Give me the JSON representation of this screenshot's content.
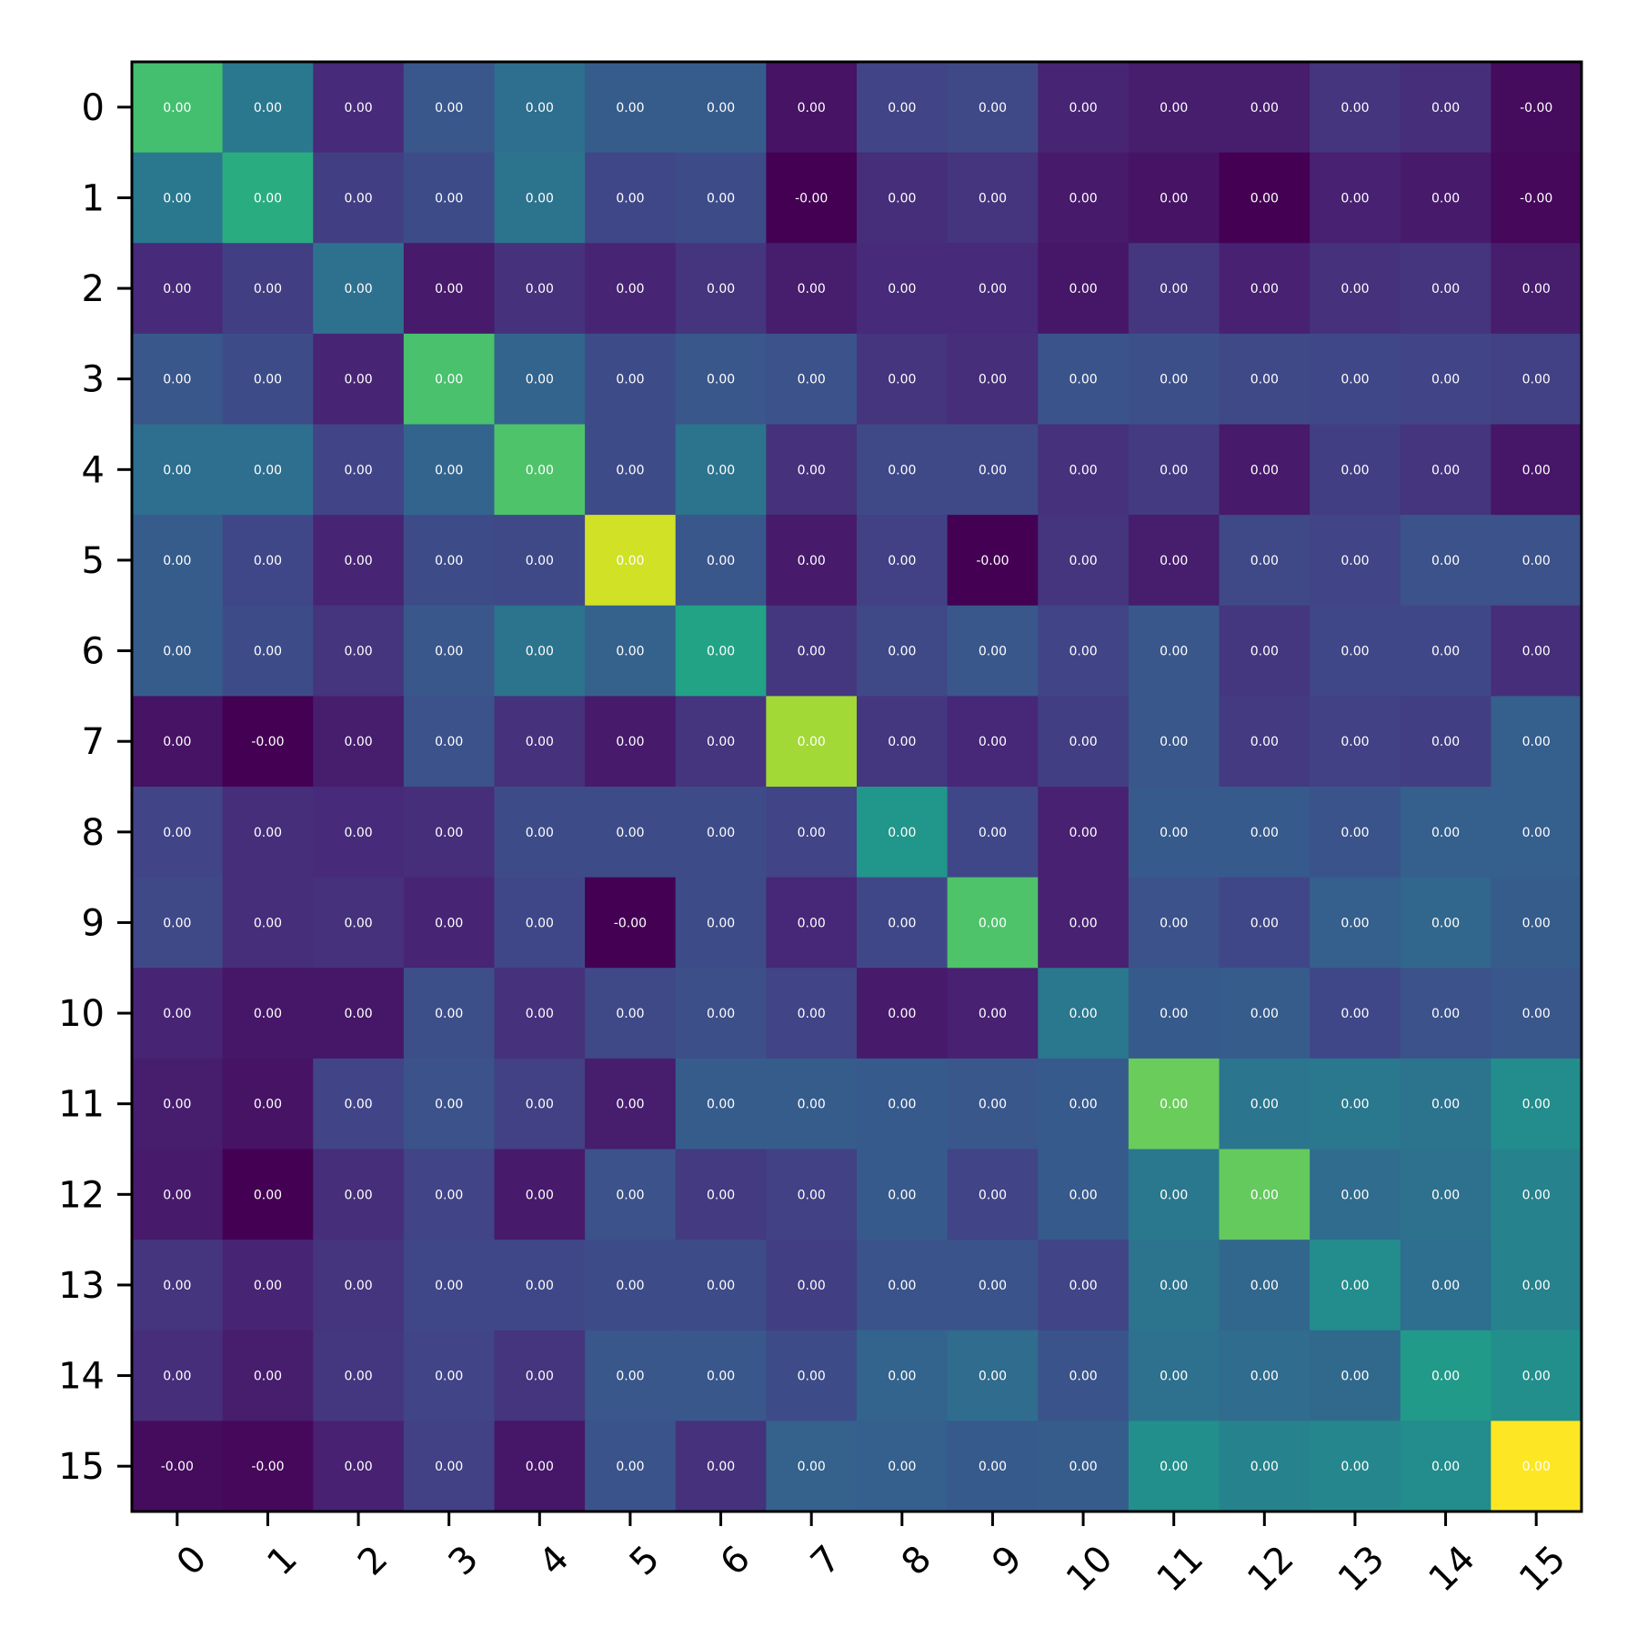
{
  "chart_data": {
    "type": "heatmap",
    "title": "",
    "xlabel": "",
    "ylabel": "",
    "colormap": "viridis",
    "x_categories": [
      "0",
      "1",
      "2",
      "3",
      "4",
      "5",
      "6",
      "7",
      "8",
      "9",
      "10",
      "11",
      "12",
      "13",
      "14",
      "15"
    ],
    "y_categories": [
      "0",
      "1",
      "2",
      "3",
      "4",
      "5",
      "6",
      "7",
      "8",
      "9",
      "10",
      "11",
      "12",
      "13",
      "14",
      "15"
    ],
    "value_labels": [
      [
        "0.00",
        "0.00",
        "0.00",
        "0.00",
        "0.00",
        "0.00",
        "0.00",
        "0.00",
        "0.00",
        "0.00",
        "0.00",
        "0.00",
        "0.00",
        "0.00",
        "0.00",
        "-0.00"
      ],
      [
        "0.00",
        "0.00",
        "0.00",
        "0.00",
        "0.00",
        "0.00",
        "0.00",
        "-0.00",
        "0.00",
        "0.00",
        "0.00",
        "0.00",
        "0.00",
        "0.00",
        "0.00",
        "-0.00"
      ],
      [
        "0.00",
        "0.00",
        "0.00",
        "0.00",
        "0.00",
        "0.00",
        "0.00",
        "0.00",
        "0.00",
        "0.00",
        "0.00",
        "0.00",
        "0.00",
        "0.00",
        "0.00",
        "0.00"
      ],
      [
        "0.00",
        "0.00",
        "0.00",
        "0.00",
        "0.00",
        "0.00",
        "0.00",
        "0.00",
        "0.00",
        "0.00",
        "0.00",
        "0.00",
        "0.00",
        "0.00",
        "0.00",
        "0.00"
      ],
      [
        "0.00",
        "0.00",
        "0.00",
        "0.00",
        "0.00",
        "0.00",
        "0.00",
        "0.00",
        "0.00",
        "0.00",
        "0.00",
        "0.00",
        "0.00",
        "0.00",
        "0.00",
        "0.00"
      ],
      [
        "0.00",
        "0.00",
        "0.00",
        "0.00",
        "0.00",
        "0.00",
        "0.00",
        "0.00",
        "0.00",
        "-0.00",
        "0.00",
        "0.00",
        "0.00",
        "0.00",
        "0.00",
        "0.00"
      ],
      [
        "0.00",
        "0.00",
        "0.00",
        "0.00",
        "0.00",
        "0.00",
        "0.00",
        "0.00",
        "0.00",
        "0.00",
        "0.00",
        "0.00",
        "0.00",
        "0.00",
        "0.00",
        "0.00"
      ],
      [
        "0.00",
        "-0.00",
        "0.00",
        "0.00",
        "0.00",
        "0.00",
        "0.00",
        "0.00",
        "0.00",
        "0.00",
        "0.00",
        "0.00",
        "0.00",
        "0.00",
        "0.00",
        "0.00"
      ],
      [
        "0.00",
        "0.00",
        "0.00",
        "0.00",
        "0.00",
        "0.00",
        "0.00",
        "0.00",
        "0.00",
        "0.00",
        "0.00",
        "0.00",
        "0.00",
        "0.00",
        "0.00",
        "0.00"
      ],
      [
        "0.00",
        "0.00",
        "0.00",
        "0.00",
        "0.00",
        "-0.00",
        "0.00",
        "0.00",
        "0.00",
        "0.00",
        "0.00",
        "0.00",
        "0.00",
        "0.00",
        "0.00",
        "0.00"
      ],
      [
        "0.00",
        "0.00",
        "0.00",
        "0.00",
        "0.00",
        "0.00",
        "0.00",
        "0.00",
        "0.00",
        "0.00",
        "0.00",
        "0.00",
        "0.00",
        "0.00",
        "0.00",
        "0.00"
      ],
      [
        "0.00",
        "0.00",
        "0.00",
        "0.00",
        "0.00",
        "0.00",
        "0.00",
        "0.00",
        "0.00",
        "0.00",
        "0.00",
        "0.00",
        "0.00",
        "0.00",
        "0.00",
        "0.00"
      ],
      [
        "0.00",
        "0.00",
        "0.00",
        "0.00",
        "0.00",
        "0.00",
        "0.00",
        "0.00",
        "0.00",
        "0.00",
        "0.00",
        "0.00",
        "0.00",
        "0.00",
        "0.00",
        "0.00"
      ],
      [
        "0.00",
        "0.00",
        "0.00",
        "0.00",
        "0.00",
        "0.00",
        "0.00",
        "0.00",
        "0.00",
        "0.00",
        "0.00",
        "0.00",
        "0.00",
        "0.00",
        "0.00",
        "0.00"
      ],
      [
        "0.00",
        "0.00",
        "0.00",
        "0.00",
        "0.00",
        "0.00",
        "0.00",
        "0.00",
        "0.00",
        "0.00",
        "0.00",
        "0.00",
        "0.00",
        "0.00",
        "0.00",
        "0.00"
      ],
      [
        "-0.00",
        "-0.00",
        "0.00",
        "0.00",
        "0.00",
        "0.00",
        "0.00",
        "0.00",
        "0.00",
        "0.00",
        "0.00",
        "0.00",
        "0.00",
        "0.00",
        "0.00",
        "0.00"
      ]
    ],
    "color_levels": [
      [
        0.7,
        0.4,
        0.12,
        0.27,
        0.36,
        0.29,
        0.29,
        0.05,
        0.2,
        0.22,
        0.1,
        0.08,
        0.08,
        0.15,
        0.13,
        0.03
      ],
      [
        0.4,
        0.62,
        0.18,
        0.23,
        0.38,
        0.21,
        0.23,
        0.0,
        0.13,
        0.15,
        0.07,
        0.05,
        0.0,
        0.09,
        0.07,
        0.02
      ],
      [
        0.12,
        0.18,
        0.37,
        0.07,
        0.14,
        0.1,
        0.15,
        0.08,
        0.12,
        0.12,
        0.06,
        0.16,
        0.09,
        0.14,
        0.15,
        0.08
      ],
      [
        0.27,
        0.23,
        0.1,
        0.71,
        0.32,
        0.23,
        0.27,
        0.25,
        0.15,
        0.13,
        0.26,
        0.24,
        0.22,
        0.21,
        0.2,
        0.19
      ],
      [
        0.36,
        0.36,
        0.2,
        0.32,
        0.72,
        0.23,
        0.38,
        0.14,
        0.22,
        0.22,
        0.14,
        0.17,
        0.07,
        0.18,
        0.15,
        0.06
      ],
      [
        0.29,
        0.21,
        0.1,
        0.23,
        0.22,
        0.93,
        0.27,
        0.07,
        0.19,
        0.0,
        0.15,
        0.08,
        0.22,
        0.2,
        0.25,
        0.25
      ],
      [
        0.29,
        0.23,
        0.15,
        0.27,
        0.38,
        0.31,
        0.58,
        0.16,
        0.22,
        0.27,
        0.2,
        0.27,
        0.16,
        0.21,
        0.21,
        0.13
      ],
      [
        0.05,
        0.0,
        0.08,
        0.25,
        0.14,
        0.07,
        0.15,
        0.86,
        0.16,
        0.11,
        0.18,
        0.27,
        0.17,
        0.19,
        0.18,
        0.3
      ],
      [
        0.2,
        0.13,
        0.12,
        0.13,
        0.23,
        0.23,
        0.23,
        0.2,
        0.52,
        0.21,
        0.09,
        0.28,
        0.28,
        0.26,
        0.3,
        0.3
      ],
      [
        0.22,
        0.13,
        0.14,
        0.1,
        0.21,
        0.0,
        0.23,
        0.11,
        0.21,
        0.72,
        0.09,
        0.25,
        0.21,
        0.3,
        0.33,
        0.29
      ],
      [
        0.1,
        0.06,
        0.06,
        0.24,
        0.14,
        0.22,
        0.24,
        0.2,
        0.07,
        0.09,
        0.4,
        0.28,
        0.29,
        0.21,
        0.25,
        0.27
      ],
      [
        0.08,
        0.05,
        0.2,
        0.25,
        0.19,
        0.08,
        0.29,
        0.29,
        0.28,
        0.27,
        0.28,
        0.77,
        0.39,
        0.4,
        0.38,
        0.48
      ],
      [
        0.07,
        0.0,
        0.13,
        0.2,
        0.07,
        0.25,
        0.17,
        0.19,
        0.28,
        0.2,
        0.28,
        0.4,
        0.76,
        0.35,
        0.37,
        0.44
      ],
      [
        0.15,
        0.1,
        0.15,
        0.21,
        0.21,
        0.23,
        0.23,
        0.18,
        0.26,
        0.26,
        0.2,
        0.38,
        0.33,
        0.48,
        0.36,
        0.44
      ],
      [
        0.13,
        0.08,
        0.16,
        0.2,
        0.15,
        0.27,
        0.27,
        0.23,
        0.32,
        0.35,
        0.26,
        0.37,
        0.35,
        0.34,
        0.54,
        0.49
      ],
      [
        0.03,
        0.02,
        0.09,
        0.19,
        0.06,
        0.26,
        0.14,
        0.31,
        0.3,
        0.28,
        0.29,
        0.49,
        0.44,
        0.46,
        0.48,
        1.0
      ]
    ],
    "grid": false,
    "legend": "none"
  }
}
